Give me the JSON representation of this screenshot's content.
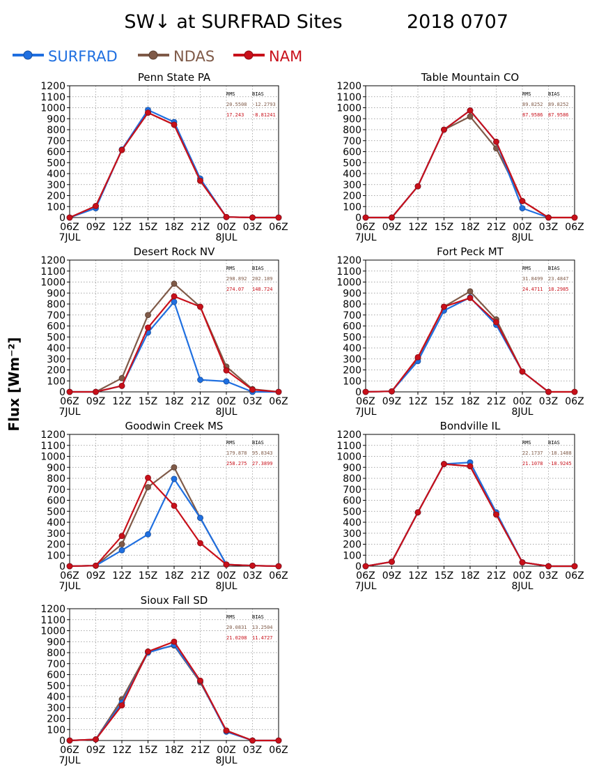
{
  "title": "SW↓ at SURFRAD Sites",
  "date": "2018 0707",
  "ylabel": "Flux [Wm⁻²]",
  "legend": [
    {
      "name": "SURFRAD",
      "color": "#1f6fe0"
    },
    {
      "name": "NDAS",
      "color": "#7f5a48"
    },
    {
      "name": "NAM",
      "color": "#c8101a"
    }
  ],
  "stats_headers": {
    "rms": "RMS",
    "bias": "BIAS"
  },
  "chart_data": [
    {
      "type": "line",
      "title": "Penn State PA",
      "x": [
        "06Z",
        "09Z",
        "12Z",
        "15Z",
        "18Z",
        "21Z",
        "00Z",
        "03Z",
        "06Z"
      ],
      "date_labels": [
        {
          "at": "06Z",
          "label": "7JUL"
        },
        {
          "at": "00Z",
          "label": "8JUL"
        }
      ],
      "ylim": [
        0,
        1200
      ],
      "yticks": [
        0,
        100,
        200,
        300,
        400,
        500,
        600,
        700,
        800,
        900,
        1000,
        1100,
        1200
      ],
      "grid": true,
      "series": [
        {
          "name": "SURFRAD",
          "values": [
            0,
            85,
            620,
            980,
            870,
            355,
            5,
            0,
            0
          ]
        },
        {
          "name": "NDAS",
          "values": [
            0,
            105,
            615,
            955,
            845,
            335,
            5,
            0,
            0
          ]
        },
        {
          "name": "NAM",
          "values": [
            0,
            105,
            615,
            955,
            845,
            335,
            5,
            0,
            0
          ]
        }
      ],
      "stats": {
        "ndas": {
          "rms": "20.5508",
          "bias": "-12.2793"
        },
        "nam": {
          "rms": "17.243",
          "bias": "-8.81241"
        }
      }
    },
    {
      "type": "line",
      "title": "Table Mountain CO",
      "x": [
        "06Z",
        "09Z",
        "12Z",
        "15Z",
        "18Z",
        "21Z",
        "00Z",
        "03Z",
        "06Z"
      ],
      "date_labels": [
        {
          "at": "06Z",
          "label": "7JUL"
        },
        {
          "at": "00Z",
          "label": "8JUL"
        }
      ],
      "ylim": [
        0,
        1200
      ],
      "yticks": [
        0,
        100,
        200,
        300,
        400,
        500,
        600,
        700,
        800,
        900,
        1000,
        1100,
        1200
      ],
      "grid": true,
      "series": [
        {
          "name": "SURFRAD",
          "values": [
            0,
            0,
            285,
            800,
            975,
            690,
            85,
            0,
            null
          ]
        },
        {
          "name": "NDAS",
          "values": [
            0,
            0,
            285,
            800,
            920,
            630,
            150,
            0,
            0
          ]
        },
        {
          "name": "NAM",
          "values": [
            0,
            0,
            285,
            800,
            975,
            690,
            150,
            0,
            0
          ]
        }
      ],
      "stats": {
        "ndas": {
          "rms": "89.8252",
          "bias": "89.8252"
        },
        "nam": {
          "rms": "87.9586",
          "bias": "87.9586"
        }
      }
    },
    {
      "type": "line",
      "title": "Desert Rock NV",
      "x": [
        "06Z",
        "09Z",
        "12Z",
        "15Z",
        "18Z",
        "21Z",
        "00Z",
        "03Z",
        "06Z"
      ],
      "date_labels": [
        {
          "at": "06Z",
          "label": "7JUL"
        },
        {
          "at": "00Z",
          "label": "8JUL"
        }
      ],
      "ylim": [
        0,
        1200
      ],
      "yticks": [
        0,
        100,
        200,
        300,
        400,
        500,
        600,
        700,
        800,
        900,
        1000,
        1100,
        1200
      ],
      "grid": true,
      "series": [
        {
          "name": "SURFRAD",
          "values": [
            0,
            0,
            55,
            540,
            820,
            110,
            95,
            0,
            0
          ]
        },
        {
          "name": "NDAS",
          "values": [
            0,
            0,
            125,
            700,
            985,
            775,
            230,
            25,
            0
          ]
        },
        {
          "name": "NAM",
          "values": [
            0,
            0,
            55,
            585,
            870,
            775,
            195,
            20,
            0
          ]
        }
      ],
      "stats": {
        "ndas": {
          "rms": "298.892",
          "bias": "202.189"
        },
        "nam": {
          "rms": "274.07",
          "bias": "148.724"
        }
      }
    },
    {
      "type": "line",
      "title": "Fort Peck MT",
      "x": [
        "06Z",
        "09Z",
        "12Z",
        "15Z",
        "18Z",
        "21Z",
        "00Z",
        "03Z",
        "06Z"
      ],
      "date_labels": [
        {
          "at": "06Z",
          "label": "7JUL"
        },
        {
          "at": "00Z",
          "label": "8JUL"
        }
      ],
      "ylim": [
        0,
        1200
      ],
      "yticks": [
        0,
        100,
        200,
        300,
        400,
        500,
        600,
        700,
        800,
        900,
        1000,
        1100,
        1200
      ],
      "grid": true,
      "series": [
        {
          "name": "SURFRAD",
          "values": [
            0,
            5,
            280,
            740,
            860,
            610,
            185,
            0,
            null
          ]
        },
        {
          "name": "NDAS",
          "values": [
            0,
            5,
            305,
            775,
            915,
            660,
            185,
            0,
            0
          ]
        },
        {
          "name": "NAM",
          "values": [
            0,
            5,
            315,
            775,
            855,
            635,
            185,
            0,
            0
          ]
        }
      ],
      "stats": {
        "ndas": {
          "rms": "31.8499",
          "bias": "23.4847"
        },
        "nam": {
          "rms": "24.4711",
          "bias": "18.2985"
        }
      }
    },
    {
      "type": "line",
      "title": "Goodwin Creek MS",
      "x": [
        "06Z",
        "09Z",
        "12Z",
        "15Z",
        "18Z",
        "21Z",
        "00Z",
        "03Z",
        "06Z"
      ],
      "date_labels": [
        {
          "at": "06Z",
          "label": "7JUL"
        },
        {
          "at": "00Z",
          "label": "8JUL"
        }
      ],
      "ylim": [
        0,
        1200
      ],
      "yticks": [
        0,
        100,
        200,
        300,
        400,
        500,
        600,
        700,
        800,
        900,
        1000,
        1100,
        1200
      ],
      "grid": true,
      "series": [
        {
          "name": "SURFRAD",
          "values": [
            0,
            5,
            145,
            290,
            795,
            440,
            15,
            5,
            0
          ]
        },
        {
          "name": "NDAS",
          "values": [
            0,
            5,
            200,
            720,
            900,
            440,
            15,
            5,
            0
          ]
        },
        {
          "name": "NAM",
          "values": [
            0,
            5,
            275,
            805,
            550,
            210,
            15,
            5,
            0
          ]
        }
      ],
      "stats": {
        "ndas": {
          "rms": "179.878",
          "bias": "95.8343"
        },
        "nam": {
          "rms": "258.275",
          "bias": "27.3899"
        }
      }
    },
    {
      "type": "line",
      "title": "Bondville IL",
      "x": [
        "06Z",
        "09Z",
        "12Z",
        "15Z",
        "18Z",
        "21Z",
        "00Z",
        "03Z",
        "06Z"
      ],
      "date_labels": [
        {
          "at": "06Z",
          "label": "7JUL"
        },
        {
          "at": "00Z",
          "label": "8JUL"
        }
      ],
      "ylim": [
        0,
        1200
      ],
      "yticks": [
        0,
        100,
        200,
        300,
        400,
        500,
        600,
        700,
        800,
        900,
        1000,
        1100,
        1200
      ],
      "grid": true,
      "series": [
        {
          "name": "SURFRAD",
          "values": [
            0,
            40,
            490,
            930,
            945,
            490,
            35,
            0,
            0
          ]
        },
        {
          "name": "NDAS",
          "values": [
            0,
            40,
            490,
            930,
            910,
            470,
            35,
            0,
            0
          ]
        },
        {
          "name": "NAM",
          "values": [
            0,
            40,
            490,
            930,
            910,
            470,
            35,
            0,
            0
          ]
        }
      ],
      "stats": {
        "ndas": {
          "rms": "22.1737",
          "bias": "-18.1488"
        },
        "nam": {
          "rms": "21.1078",
          "bias": "-18.9245"
        }
      }
    },
    {
      "type": "line",
      "title": "Sioux Fall SD",
      "x": [
        "06Z",
        "09Z",
        "12Z",
        "15Z",
        "18Z",
        "21Z",
        "00Z",
        "03Z",
        "06Z"
      ],
      "date_labels": [
        {
          "at": "06Z",
          "label": "7JUL"
        },
        {
          "at": "00Z",
          "label": "8JUL"
        }
      ],
      "ylim": [
        0,
        1200
      ],
      "yticks": [
        0,
        100,
        200,
        300,
        400,
        500,
        600,
        700,
        800,
        900,
        1000,
        1100,
        1200
      ],
      "grid": true,
      "series": [
        {
          "name": "SURFRAD",
          "values": [
            0,
            10,
            345,
            800,
            870,
            540,
            80,
            0,
            0
          ]
        },
        {
          "name": "NDAS",
          "values": [
            0,
            10,
            375,
            810,
            865,
            530,
            90,
            0,
            0
          ]
        },
        {
          "name": "NAM",
          "values": [
            0,
            10,
            320,
            810,
            900,
            545,
            90,
            0,
            0
          ]
        }
      ],
      "stats": {
        "ndas": {
          "rms": "20.0831",
          "bias": "13.2504"
        },
        "nam": {
          "rms": "21.0208",
          "bias": "11.4727"
        }
      }
    }
  ]
}
